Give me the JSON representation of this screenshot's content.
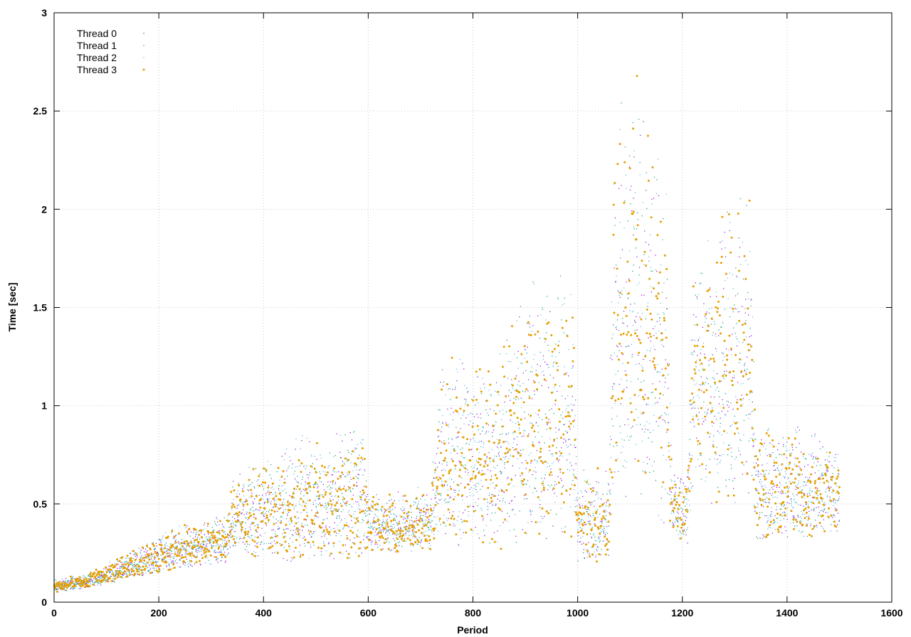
{
  "chart_data": {
    "type": "scatter",
    "title": "",
    "xlabel": "Period",
    "ylabel": "Time [sec]",
    "xlim": [
      0,
      1600
    ],
    "ylim": [
      0,
      3
    ],
    "x_ticks": [
      "0",
      "200",
      "400",
      "600",
      "800",
      "1000",
      "1200",
      "1400",
      "1600"
    ],
    "y_ticks": [
      "0",
      "0.5",
      "1",
      "1.5",
      "2",
      "2.5",
      "3"
    ],
    "grid": true,
    "legend_placement": "top-left",
    "series": [
      {
        "name": "Thread 0",
        "color": "#9400d3",
        "marker": "dot"
      },
      {
        "name": "Thread 1",
        "color": "#009e73",
        "marker": "dot"
      },
      {
        "name": "Thread 2",
        "color": "#56b4e9",
        "marker": "dot"
      },
      {
        "name": "Thread 3",
        "color": "#e69f00",
        "marker": "point"
      }
    ],
    "period_profile": [
      {
        "x": 0,
        "low": 0.05,
        "high": 0.12
      },
      {
        "x": 60,
        "low": 0.07,
        "high": 0.15
      },
      {
        "x": 120,
        "low": 0.1,
        "high": 0.22
      },
      {
        "x": 180,
        "low": 0.14,
        "high": 0.32
      },
      {
        "x": 260,
        "low": 0.18,
        "high": 0.42
      },
      {
        "x": 330,
        "low": 0.2,
        "high": 0.45
      },
      {
        "x": 340,
        "low": 0.25,
        "high": 0.65
      },
      {
        "x": 420,
        "low": 0.22,
        "high": 0.75
      },
      {
        "x": 470,
        "low": 0.2,
        "high": 0.85
      },
      {
        "x": 590,
        "low": 0.22,
        "high": 0.92
      },
      {
        "x": 600,
        "low": 0.25,
        "high": 0.55
      },
      {
        "x": 720,
        "low": 0.25,
        "high": 0.6
      },
      {
        "x": 740,
        "low": 0.3,
        "high": 1.25
      },
      {
        "x": 860,
        "low": 0.25,
        "high": 1.35
      },
      {
        "x": 880,
        "low": 0.3,
        "high": 1.6
      },
      {
        "x": 990,
        "low": 0.3,
        "high": 1.75
      },
      {
        "x": 1000,
        "low": 0.2,
        "high": 0.7
      },
      {
        "x": 1060,
        "low": 0.2,
        "high": 0.7
      },
      {
        "x": 1070,
        "low": 0.6,
        "high": 2.6
      },
      {
        "x": 1120,
        "low": 0.4,
        "high": 2.75
      },
      {
        "x": 1170,
        "low": 0.3,
        "high": 2.3
      },
      {
        "x": 1180,
        "low": 0.3,
        "high": 0.7
      },
      {
        "x": 1210,
        "low": 0.3,
        "high": 0.7
      },
      {
        "x": 1220,
        "low": 0.5,
        "high": 1.95
      },
      {
        "x": 1330,
        "low": 0.5,
        "high": 2.1
      },
      {
        "x": 1340,
        "low": 0.3,
        "high": 0.95
      },
      {
        "x": 1500,
        "low": 0.35,
        "high": 0.85
      }
    ]
  }
}
